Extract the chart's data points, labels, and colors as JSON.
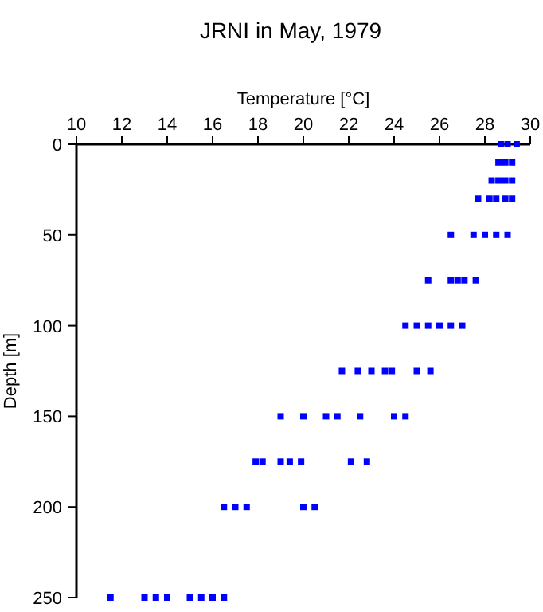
{
  "chart_data": {
    "type": "scatter",
    "title": "JRNI in May, 1979",
    "xlabel": "Temperature [°C]",
    "ylabel": "Depth [m]",
    "xlim": [
      10,
      30
    ],
    "xticks": [
      10,
      12,
      14,
      16,
      18,
      20,
      22,
      24,
      26,
      28,
      30
    ],
    "ylim": [
      250,
      0
    ],
    "yticks": [
      0,
      50,
      100,
      150,
      200,
      250
    ],
    "marker": "square",
    "grid": false,
    "series": [
      {
        "color": "#0000ff",
        "x": [
          28.7,
          29.0,
          29.4,
          28.6,
          28.9,
          29.2,
          28.3,
          28.6,
          28.9,
          29.2,
          27.7,
          28.2,
          28.5,
          28.9,
          29.2,
          26.5,
          27.5,
          28.0,
          28.5,
          29.0,
          25.5,
          26.5,
          26.8,
          27.1,
          27.6,
          24.5,
          25.0,
          25.5,
          26.0,
          26.5,
          27.0,
          21.7,
          22.4,
          23.0,
          23.6,
          23.9,
          25.0,
          25.6,
          19.0,
          20.0,
          21.0,
          21.5,
          22.5,
          24.0,
          24.5,
          17.9,
          18.2,
          19.0,
          19.4,
          19.9,
          22.1,
          22.8,
          16.5,
          17.0,
          17.5,
          20.0,
          20.5,
          11.5,
          13.0,
          13.5,
          14.0,
          15.0,
          15.5,
          16.0,
          16.5
        ],
        "values": [
          0,
          0,
          0,
          10,
          10,
          10,
          20,
          20,
          20,
          20,
          30,
          30,
          30,
          30,
          30,
          50,
          50,
          50,
          50,
          50,
          75,
          75,
          75,
          75,
          75,
          100,
          100,
          100,
          100,
          100,
          100,
          125,
          125,
          125,
          125,
          125,
          125,
          125,
          150,
          150,
          150,
          150,
          150,
          150,
          150,
          175,
          175,
          175,
          175,
          175,
          175,
          175,
          200,
          200,
          200,
          200,
          200,
          250,
          250,
          250,
          250,
          250,
          250,
          250,
          250
        ]
      }
    ]
  }
}
